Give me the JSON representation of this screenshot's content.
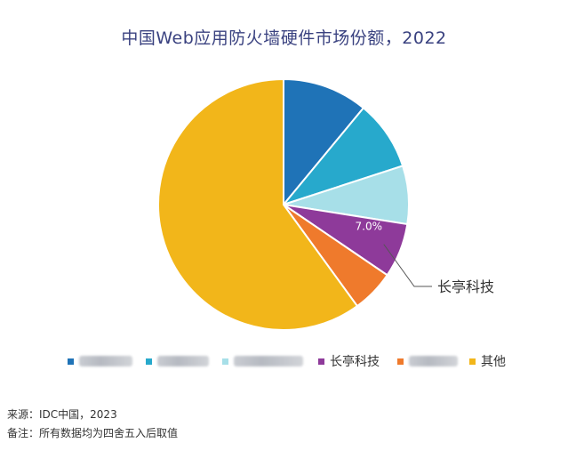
{
  "chart_data": {
    "type": "pie",
    "title": "中国Web应用防火墙硬件市场份额，2022",
    "slices": [
      {
        "name": "",
        "value": 11.0,
        "color": "#1f73b7"
      },
      {
        "name": "",
        "value": 9.0,
        "color": "#27a9cc"
      },
      {
        "name": "",
        "value": 7.5,
        "color": "#a7dfe8"
      },
      {
        "name": "长亭科技",
        "value": 7.0,
        "color": "#8e3a9a"
      },
      {
        "name": "",
        "value": 5.5,
        "color": "#ef7a2c"
      },
      {
        "name": "其他",
        "value": 60.0,
        "color": "#f2b61a"
      }
    ],
    "data_label": {
      "text": "7.0%",
      "slice": 3
    },
    "callout": {
      "text": "长亭科技",
      "slice": 3
    },
    "legend": {
      "placement": "bottom",
      "items": [
        {
          "label": "",
          "blurred": true,
          "color": "#1f73b7"
        },
        {
          "label": "",
          "blurred": true,
          "color": "#27a9cc"
        },
        {
          "label": "",
          "blurred": true,
          "color": "#a7dfe8"
        },
        {
          "label": "长亭科技",
          "blurred": false,
          "color": "#8e3a9a"
        },
        {
          "label": "",
          "blurred": true,
          "color": "#ef7a2c"
        },
        {
          "label": "其他",
          "blurred": false,
          "color": "#f2b61a"
        }
      ]
    }
  },
  "footnotes": {
    "source": "来源：IDC中国，2023",
    "note": "备注：所有数据均为四舍五入后取值"
  }
}
